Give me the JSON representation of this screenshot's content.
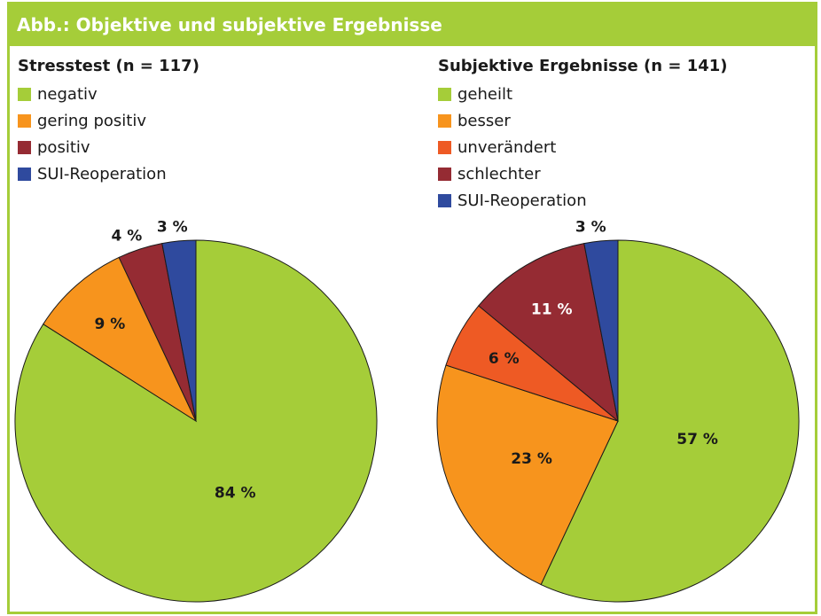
{
  "header": {
    "title": "Abb.: Objektive und subjektive Ergebnisse"
  },
  "colors": {
    "frame": "#a5cd39",
    "green": "#a5cd39",
    "light_orange": "#f7941d",
    "red_orange": "#ee5a24",
    "dark_red": "#952b33",
    "blue": "#2f4a9e"
  },
  "chart_data": [
    {
      "type": "pie",
      "title": "Stresstest (n = 117)",
      "categories": [
        "negativ",
        "gering positiv",
        "positiv",
        "SUI-Reoperation"
      ],
      "values": [
        84,
        9,
        4,
        3
      ],
      "value_labels": [
        "84 %",
        "9 %",
        "4 %",
        "3 %"
      ],
      "colors": [
        "#a5cd39",
        "#f7941d",
        "#952b33",
        "#2f4a9e"
      ],
      "legend_position": "top-left"
    },
    {
      "type": "pie",
      "title": "Subjektive Ergebnisse (n = 141)",
      "categories": [
        "geheilt",
        "besser",
        "unverändert",
        "schlechter",
        "SUI-Reoperation"
      ],
      "values": [
        57,
        23,
        6,
        11,
        3
      ],
      "value_labels": [
        "57 %",
        "23 %",
        "6 %",
        "11 %",
        "3 %"
      ],
      "colors": [
        "#a5cd39",
        "#f7941d",
        "#ee5a24",
        "#952b33",
        "#2f4a9e"
      ],
      "legend_entries": [
        {
          "label": "geheilt",
          "color": "#a5cd39"
        },
        {
          "label": "besser",
          "color": "#f7941d"
        },
        {
          "label": "unverändert",
          "color": "#ee5a24"
        },
        {
          "label": "schlechter",
          "color": "#952b33"
        },
        {
          "label": "SUI-Reoperation",
          "color": "#2f4a9e"
        }
      ],
      "legend_position": "top-left"
    }
  ]
}
